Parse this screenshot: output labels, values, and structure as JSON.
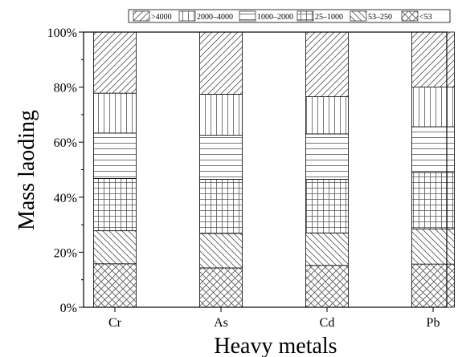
{
  "chart_data": {
    "type": "bar",
    "stacked": true,
    "categories": [
      "Cr",
      "As",
      "Cd",
      "Pb"
    ],
    "xlabel": "Heavy metals",
    "ylabel": "Mass laoding",
    "ylim": [
      0,
      100
    ],
    "y_tick_labels": [
      "0%",
      "20%",
      "40%",
      "60%",
      "80%",
      "100%"
    ],
    "legend_position": "top",
    "series": [
      {
        "name": "<53",
        "pattern": "crosshatch",
        "values": [
          15.8,
          14.3,
          15.2,
          15.7
        ]
      },
      {
        "name": "53–250",
        "pattern": "diag-back",
        "values": [
          12.0,
          12.5,
          11.8,
          12.8
        ]
      },
      {
        "name": "25–1000",
        "pattern": "grid",
        "values": [
          19.0,
          19.7,
          19.5,
          20.5
        ]
      },
      {
        "name": "1000–2000",
        "pattern": "horizontal",
        "values": [
          16.5,
          16.0,
          16.5,
          16.6
        ]
      },
      {
        "name": "2000–4000",
        "pattern": "vertical",
        "values": [
          14.5,
          14.9,
          13.5,
          14.4
        ]
      },
      {
        "name": ">4000",
        "pattern": "diag-fwd",
        "values": [
          22.2,
          22.6,
          23.5,
          20.0
        ]
      }
    ],
    "legend_order": [
      ">4000",
      "2000–4000",
      "1000–2000",
      "25–1000",
      "53–250",
      "<53"
    ]
  }
}
